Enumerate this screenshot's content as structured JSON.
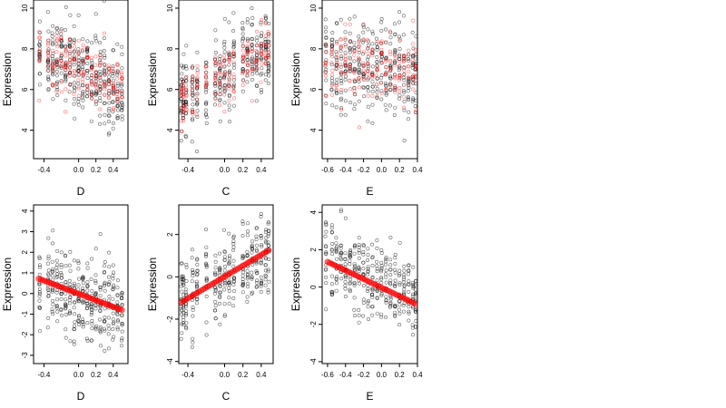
{
  "chart_data": [
    {
      "id": "p1",
      "type": "scatter",
      "xlabel": "D",
      "ylabel": "Expression",
      "xlim": [
        -0.52,
        0.57
      ],
      "ylim": [
        2.6,
        10.4
      ],
      "xticks": [
        "-0.4",
        "0.0",
        "0.2",
        "0.4"
      ],
      "xtick_values": [
        -0.4,
        0.0,
        0.2,
        0.4
      ],
      "yticks": [
        "4",
        "6",
        "8",
        "10"
      ],
      "ytick_values": [
        4,
        6,
        8,
        10
      ],
      "series": [
        {
          "role": "observed",
          "color": "#000000",
          "x_levels": [
            -0.45,
            -0.35,
            -0.3,
            -0.25,
            -0.2,
            -0.15,
            -0.1,
            -0.05,
            0.0,
            0.05,
            0.1,
            0.15,
            0.2,
            0.25,
            0.3,
            0.35,
            0.4,
            0.45,
            0.5
          ],
          "center": 7.0,
          "slope": -2.0,
          "spread": 1.3,
          "n_per_level": 18
        },
        {
          "role": "fitted",
          "color": "#ff0000",
          "x_levels": [
            -0.45,
            -0.35,
            -0.3,
            -0.25,
            -0.2,
            -0.15,
            -0.1,
            -0.05,
            0.0,
            0.05,
            0.1,
            0.15,
            0.2,
            0.25,
            0.3,
            0.35,
            0.4,
            0.45,
            0.5
          ],
          "center": 7.0,
          "slope": -2.0,
          "spread": 0.9,
          "n_per_level": 10
        }
      ]
    },
    {
      "id": "p2",
      "type": "scatter",
      "xlabel": "C",
      "ylabel": "Expression",
      "xlim": [
        -0.5,
        0.53
      ],
      "ylim": [
        2.6,
        10.4
      ],
      "xticks": [
        "-0.4",
        "0.0",
        "0.2",
        "0.4"
      ],
      "xtick_values": [
        -0.4,
        0.0,
        0.2,
        0.4
      ],
      "yticks": [
        "4",
        "6",
        "8",
        "10"
      ],
      "ytick_values": [
        4,
        6,
        8,
        10
      ],
      "series": [
        {
          "role": "observed",
          "color": "#000000",
          "x_levels": [
            -0.47,
            -0.45,
            -0.42,
            -0.35,
            -0.3,
            -0.2,
            -0.1,
            -0.05,
            0.0,
            0.05,
            0.1,
            0.2,
            0.25,
            0.3,
            0.35,
            0.4,
            0.45,
            0.48
          ],
          "center": 6.7,
          "slope": 2.6,
          "spread": 1.3,
          "n_per_level": 18
        },
        {
          "role": "fitted",
          "color": "#ff0000",
          "x_levels": [
            -0.47,
            -0.45,
            -0.42,
            -0.35,
            -0.3,
            -0.2,
            -0.1,
            -0.05,
            0.0,
            0.05,
            0.1,
            0.2,
            0.25,
            0.3,
            0.35,
            0.4,
            0.45,
            0.48
          ],
          "center": 6.7,
          "slope": 2.6,
          "spread": 0.9,
          "n_per_level": 10
        }
      ]
    },
    {
      "id": "p3",
      "type": "scatter",
      "xlabel": "E",
      "ylabel": "Expression",
      "xlim": [
        -0.66,
        0.4
      ],
      "ylim": [
        2.6,
        10.4
      ],
      "xticks": [
        "-0.6",
        "-0.4",
        "-0.2",
        "0.0",
        "0.2",
        "0.4"
      ],
      "xtick_values": [
        -0.6,
        -0.4,
        -0.2,
        0.0,
        0.2,
        0.4
      ],
      "yticks": [
        "4",
        "6",
        "8",
        "10"
      ],
      "ytick_values": [
        4,
        6,
        8,
        10
      ],
      "series": [
        {
          "role": "observed",
          "color": "#000000",
          "x_levels": [
            -0.62,
            -0.55,
            -0.5,
            -0.45,
            -0.4,
            -0.35,
            -0.3,
            -0.25,
            -0.2,
            -0.15,
            -0.1,
            -0.05,
            0.0,
            0.05,
            0.1,
            0.15,
            0.2,
            0.25,
            0.3,
            0.35,
            0.38
          ],
          "center": 7.0,
          "slope": -0.6,
          "spread": 1.4,
          "n_per_level": 16
        },
        {
          "role": "fitted",
          "color": "#ff0000",
          "x_levels": [
            -0.62,
            -0.55,
            -0.5,
            -0.45,
            -0.4,
            -0.35,
            -0.3,
            -0.25,
            -0.2,
            -0.15,
            -0.1,
            -0.05,
            0.0,
            0.05,
            0.1,
            0.15,
            0.2,
            0.25,
            0.3,
            0.35,
            0.38
          ],
          "center": 7.0,
          "slope": -0.6,
          "spread": 1.0,
          "n_per_level": 9
        }
      ]
    },
    {
      "id": "p4",
      "type": "scatter",
      "xlabel": "D",
      "ylabel": "Expression",
      "xlim": [
        -0.52,
        0.57
      ],
      "ylim": [
        -3.4,
        4.3
      ],
      "xticks": [
        "-0.4",
        "0.0",
        "0.2",
        "0.4"
      ],
      "xtick_values": [
        -0.4,
        0.0,
        0.2,
        0.4
      ],
      "yticks": [
        "-3",
        "-2",
        "-1",
        "0",
        "1",
        "2",
        "3",
        "4"
      ],
      "ytick_values": [
        -3,
        -2,
        -1,
        0,
        1,
        2,
        3,
        4
      ],
      "series": [
        {
          "role": "observed",
          "color": "#000000",
          "x_levels": [
            -0.45,
            -0.35,
            -0.3,
            -0.25,
            -0.2,
            -0.15,
            -0.1,
            -0.05,
            0.0,
            0.05,
            0.1,
            0.15,
            0.2,
            0.25,
            0.3,
            0.35,
            0.4,
            0.45,
            0.5
          ],
          "center": 0.0,
          "slope": -1.5,
          "spread": 1.2,
          "n_per_level": 18
        },
        {
          "role": "fitted",
          "color": "#ff0000",
          "line": [
            {
              "x": -0.46,
              "y": 0.72
            },
            {
              "x": 0.5,
              "y": -0.8
            }
          ]
        }
      ]
    },
    {
      "id": "p5",
      "type": "scatter",
      "xlabel": "C",
      "ylabel": "Expression",
      "xlim": [
        -0.5,
        0.53
      ],
      "ylim": [
        -4.1,
        3.4
      ],
      "xticks": [
        "-0.4",
        "0.0",
        "0.2",
        "0.4"
      ],
      "xtick_values": [
        -0.4,
        0.0,
        0.2,
        0.4
      ],
      "yticks": [
        "-4",
        "-2",
        "0",
        "2"
      ],
      "ytick_values": [
        -4,
        -2,
        0,
        2
      ],
      "series": [
        {
          "role": "observed",
          "color": "#000000",
          "x_levels": [
            -0.47,
            -0.45,
            -0.42,
            -0.35,
            -0.3,
            -0.2,
            -0.1,
            -0.05,
            0.0,
            0.05,
            0.1,
            0.2,
            0.25,
            0.3,
            0.35,
            0.4,
            0.45,
            0.48
          ],
          "center": 0.0,
          "slope": 2.5,
          "spread": 1.2,
          "n_per_level": 18
        },
        {
          "role": "fitted",
          "color": "#ff0000",
          "line": [
            {
              "x": -0.47,
              "y": -1.2
            },
            {
              "x": 0.48,
              "y": 1.25
            }
          ]
        }
      ]
    },
    {
      "id": "p6",
      "type": "scatter",
      "xlabel": "E",
      "ylabel": "Expression",
      "xlim": [
        -0.66,
        0.4
      ],
      "ylim": [
        -4.1,
        4.4
      ],
      "xticks": [
        "-0.6",
        "-0.4",
        "-0.2",
        "0.0",
        "0.2",
        "0.4"
      ],
      "xtick_values": [
        -0.6,
        -0.4,
        -0.2,
        0.0,
        0.2,
        0.4
      ],
      "yticks": [
        "-4",
        "-2",
        "0",
        "2",
        "4"
      ],
      "ytick_values": [
        -4,
        -2,
        0,
        2,
        4
      ],
      "series": [
        {
          "role": "observed",
          "color": "#000000",
          "x_levels": [
            -0.62,
            -0.55,
            -0.5,
            -0.45,
            -0.4,
            -0.35,
            -0.3,
            -0.25,
            -0.2,
            -0.15,
            -0.1,
            -0.05,
            0.0,
            0.05,
            0.1,
            0.15,
            0.2,
            0.25,
            0.3,
            0.35,
            0.38
          ],
          "center": 0.2,
          "slope": -2.2,
          "spread": 1.3,
          "n_per_level": 16
        },
        {
          "role": "fitted",
          "color": "#ff0000",
          "line": [
            {
              "x": -0.6,
              "y": 1.35
            },
            {
              "x": 0.38,
              "y": -0.9
            }
          ]
        }
      ]
    }
  ]
}
